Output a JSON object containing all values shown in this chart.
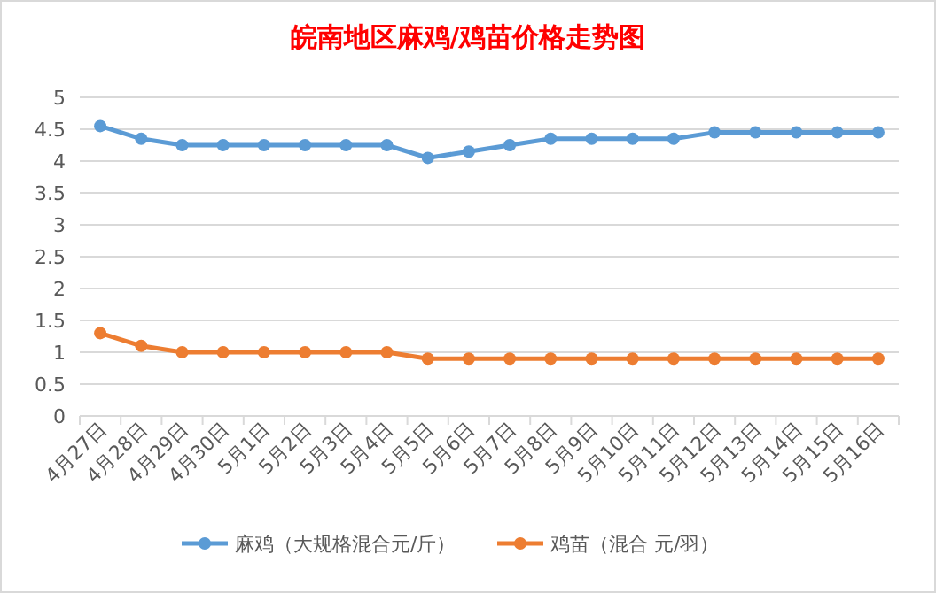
{
  "chart_data": {
    "type": "line",
    "title": "皖南地区麻鸡/鸡苗价格走势图",
    "categories": [
      "4月27日",
      "4月28日",
      "4月29日",
      "4月30日",
      "5月1日",
      "5月2日",
      "5月3日",
      "5月4日",
      "5月5日",
      "5月6日",
      "5月7日",
      "5月8日",
      "5月9日",
      "5月10日",
      "5月11日",
      "5月12日",
      "5月13日",
      "5月14日",
      "5月15日",
      "5月16日"
    ],
    "series": [
      {
        "name": "麻鸡（大规格混合元/斤）",
        "color": "#5b9bd5",
        "values": [
          4.55,
          4.35,
          4.25,
          4.25,
          4.25,
          4.25,
          4.25,
          4.25,
          4.05,
          4.15,
          4.25,
          4.35,
          4.35,
          4.35,
          4.35,
          4.45,
          4.45,
          4.45,
          4.45,
          4.45
        ]
      },
      {
        "name": "鸡苗（混合 元/羽）",
        "color": "#ed7d31",
        "values": [
          1.3,
          1.1,
          1.0,
          1.0,
          1.0,
          1.0,
          1.0,
          1.0,
          0.9,
          0.9,
          0.9,
          0.9,
          0.9,
          0.9,
          0.9,
          0.9,
          0.9,
          0.9,
          0.9,
          0.9
        ]
      }
    ],
    "ylim": [
      0,
      5
    ],
    "yticks": [
      0,
      0.5,
      1,
      1.5,
      2,
      2.5,
      3,
      3.5,
      4,
      4.5,
      5
    ],
    "grid": "y",
    "legend": "bottom",
    "marker": "circle",
    "line_style": "solid"
  }
}
